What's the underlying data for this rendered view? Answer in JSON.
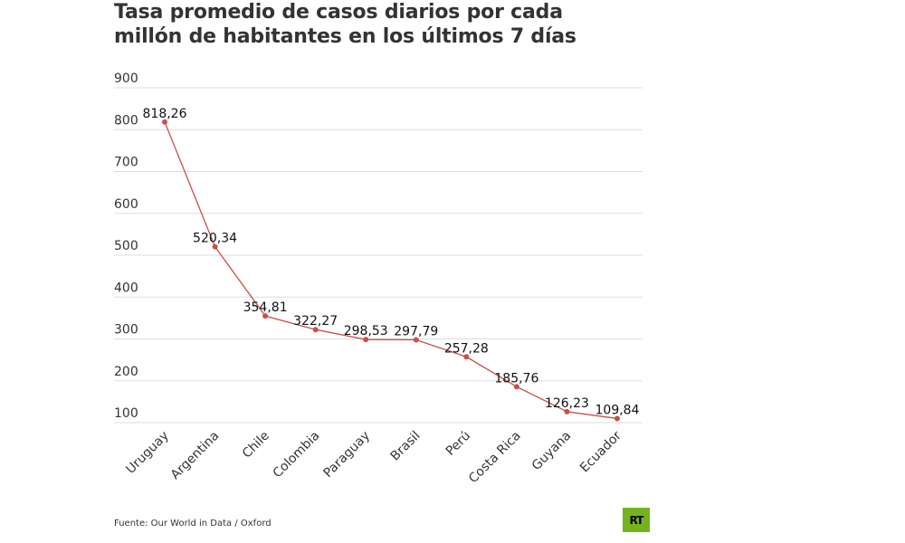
{
  "title_lines": [
    "Tasa promedio de casos diarios por cada",
    "millón de habitantes en los últimos 7 días"
  ],
  "source": "Fuente: Our World in Data / Oxford",
  "logo_text": "RT",
  "colors": {
    "line": "#c9504a",
    "grid": "#dddddd",
    "logo_bg": "#74b31e"
  },
  "chart_data": {
    "type": "line",
    "title": "Tasa promedio de casos diarios por cada millón de habitantes en los últimos 7 días",
    "xlabel": "",
    "ylabel": "",
    "ylim": [
      100,
      900
    ],
    "yticks": [
      100,
      200,
      300,
      400,
      500,
      600,
      700,
      800,
      900
    ],
    "grid": true,
    "legend": "none",
    "categories": [
      "Uruguay",
      "Argentina",
      "Chile",
      "Colombia",
      "Paraguay",
      "Brasil",
      "Perú",
      "Costa Rica",
      "Guyana",
      "Ecuador"
    ],
    "values": [
      818.26,
      520.34,
      354.81,
      322.27,
      298.53,
      297.79,
      257.28,
      185.76,
      126.23,
      109.84
    ],
    "value_labels": [
      "818,26",
      "520,34",
      "354,81",
      "322,27",
      "298,53",
      "297,79",
      "257,28",
      "185,76",
      "126,23",
      "109,84"
    ]
  }
}
